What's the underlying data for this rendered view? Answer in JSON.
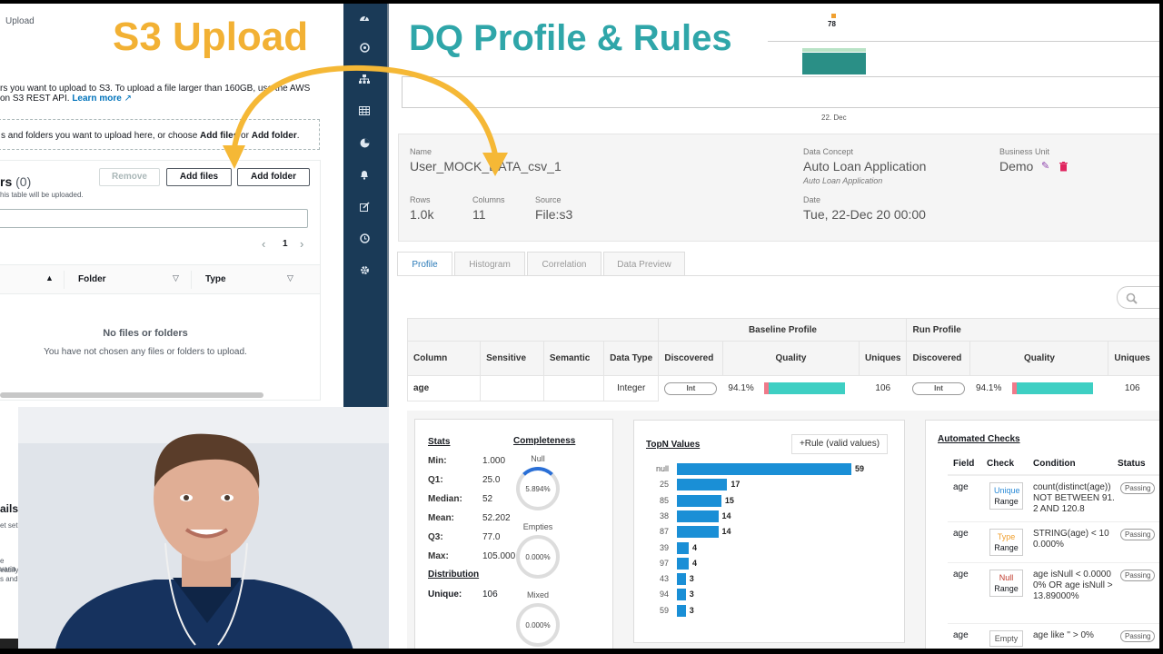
{
  "s3": {
    "breadcrumb": "Upload",
    "overlay_title": "S3 Upload",
    "intro_line1": "rs you want to upload to S3. To upload a file larger than 160GB, use the AWS",
    "intro_line2": "on S3 REST API.",
    "learn_more": "Learn more",
    "drop_text_pre": "s and folders you want to upload here, or choose ",
    "drop_add_files": "Add files",
    "drop_or": " or ",
    "drop_add_folder": "Add folder",
    "drop_end": ".",
    "files_header": "rs",
    "files_count": "(0)",
    "files_sub": "his table will be uploaded.",
    "remove_label": "Remove",
    "add_files_label": "Add files",
    "add_folder_label": "Add folder",
    "page_number": "1",
    "col_folder": "Folder",
    "col_type": "Type",
    "empty_title": "No files or folders",
    "empty_sub": "You have not chosen any files or folders to upload.",
    "bottom_fragments": [
      "ails",
      "et set",
      "e varia",
      "easily",
      "s and"
    ]
  },
  "dq": {
    "overlay_title": "DQ Profile & Rules",
    "mini_chart_value": "78",
    "mini_chart_date": "22. Dec",
    "name_label": "Name",
    "name_value": "User_MOCK_DATA_csv_1",
    "concept_label": "Data Concept",
    "concept_value": "Auto Loan Application",
    "concept_sub": "Auto Loan Application",
    "unit_label": "Business Unit",
    "unit_value": "Demo",
    "rows_label": "Rows",
    "rows_value": "1.0k",
    "columns_label": "Columns",
    "columns_value": "11",
    "source_label": "Source",
    "source_value": "File:s3",
    "date_label": "Date",
    "date_value": "Tue, 22-Dec 20 00:00",
    "tabs": [
      "Profile",
      "Histogram",
      "Correlation",
      "Data Preview"
    ],
    "table": {
      "baseline_header": "Baseline Profile",
      "run_header": "Run Profile",
      "columns": [
        "Column",
        "Sensitive",
        "Semantic",
        "Data Type",
        "Discovered",
        "Quality",
        "Uniques",
        "Discovered",
        "Quality",
        "Uniques"
      ],
      "row": {
        "column": "age",
        "type": "Integer",
        "b_discovered": "Int",
        "b_quality": "94.1%",
        "b_quality_frac": 0.941,
        "b_uniques": "106",
        "r_discovered": "Int",
        "r_quality": "94.1%",
        "r_quality_frac": 0.941,
        "r_uniques": "106"
      }
    },
    "stats": {
      "title": "Stats",
      "rows": [
        {
          "k": "Min:",
          "v": "1.000"
        },
        {
          "k": "Q1:",
          "v": "25.0"
        },
        {
          "k": "Median:",
          "v": "52"
        },
        {
          "k": "Mean:",
          "v": "52.202"
        },
        {
          "k": "Q3:",
          "v": "77.0"
        },
        {
          "k": "Max:",
          "v": "105.000"
        }
      ],
      "distribution_title": "Distribution",
      "unique_label": "Unique:",
      "unique_value": "106"
    },
    "completeness": {
      "title": "Completeness",
      "items": [
        {
          "label": "Null",
          "value": "5.894%",
          "frac": 0.05894
        },
        {
          "label": "Empties",
          "value": "0.000%",
          "frac": 0
        },
        {
          "label": "Mixed",
          "value": "0.000%",
          "frac": 0
        }
      ]
    },
    "topn": {
      "title": "TopN Values",
      "rule_button": "+Rule (valid values)"
    },
    "checks": {
      "title": "Automated Checks",
      "columns": [
        "Field",
        "Check",
        "Condition",
        "Status"
      ],
      "rows": [
        {
          "field": "age",
          "check_top": "Unique",
          "check_bottom": "Range",
          "top_color": "#2a8ad6",
          "condition": "count(distinct(age)) NOT BETWEEN 91.2 AND 120.8",
          "status": "Passing"
        },
        {
          "field": "age",
          "check_top": "Type",
          "check_bottom": "Range",
          "top_color": "#f0a030",
          "condition": "STRING(age) < 100.000%",
          "status": "Passing"
        },
        {
          "field": "age",
          "check_top": "Null",
          "check_bottom": "Range",
          "top_color": "#c0392b",
          "condition": "age isNull < 0.00000% OR age isNull > 13.89000%",
          "status": "Passing"
        },
        {
          "field": "age",
          "check_top": "Empty",
          "check_bottom": "",
          "top_color": "#555555",
          "condition": "age like '' > 0%",
          "status": "Passing"
        }
      ]
    }
  },
  "chart_data": {
    "type": "bar",
    "title": "TopN Values",
    "categories": [
      "null",
      "25",
      "85",
      "38",
      "87",
      "39",
      "97",
      "43",
      "94",
      "59"
    ],
    "values": [
      59,
      17,
      15,
      14,
      14,
      4,
      4,
      3,
      3,
      3
    ]
  },
  "colors": {
    "s3_title": "#f2b134",
    "dq_title": "#2fa6a9",
    "sidebar": "#1a3a57",
    "bar": "#1a8fd6",
    "quality_good": "#3ecfc3",
    "quality_bad": "#f07a8a",
    "arrow": "#f5b836"
  }
}
